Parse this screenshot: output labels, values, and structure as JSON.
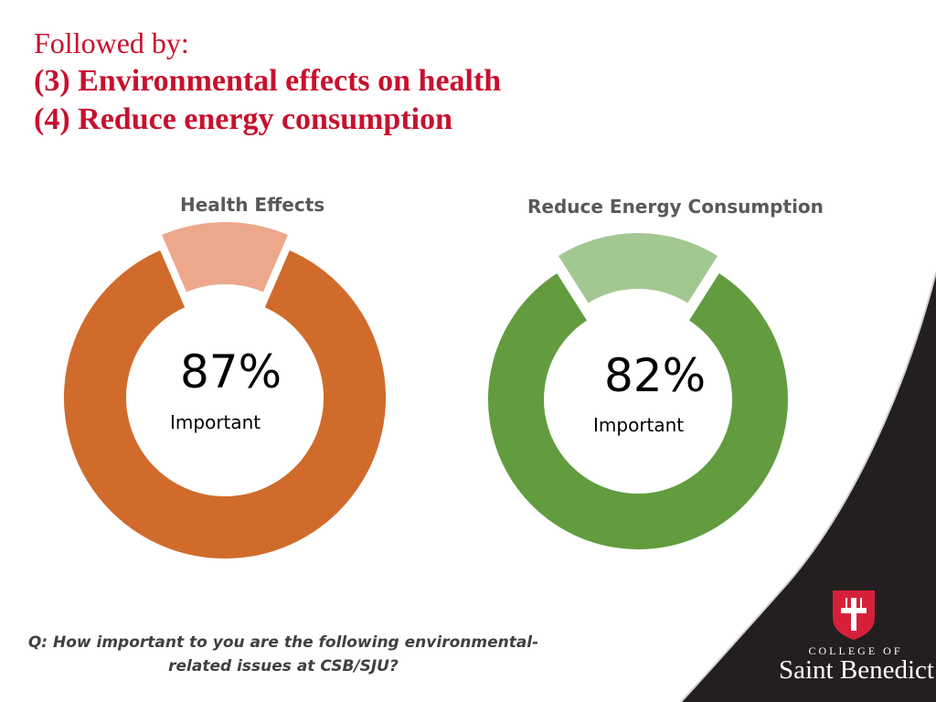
{
  "heading": {
    "line1": "Followed by:",
    "line2": "(3) Environmental effects on health",
    "line3": "(4) Reduce energy consumption"
  },
  "chart_data": [
    {
      "type": "pie",
      "title": "Health Effects",
      "values": [
        87,
        13
      ],
      "center_value": "87%",
      "center_label": "Important",
      "colors": [
        "#d06b2c",
        "#eda88c"
      ]
    },
    {
      "type": "pie",
      "title": "Reduce Energy Consumption",
      "values": [
        82,
        18
      ],
      "center_value": "82%",
      "center_label": "Important",
      "colors": [
        "#629c3f",
        "#a3c791"
      ]
    }
  ],
  "question": "Q: How important to you are the following environmental-related issues at CSB/SJU?",
  "logo": {
    "line1": "COLLEGE OF",
    "line2": "Saint Benedict",
    "shield_color": "#d6203a",
    "band_color": "#231f20"
  }
}
